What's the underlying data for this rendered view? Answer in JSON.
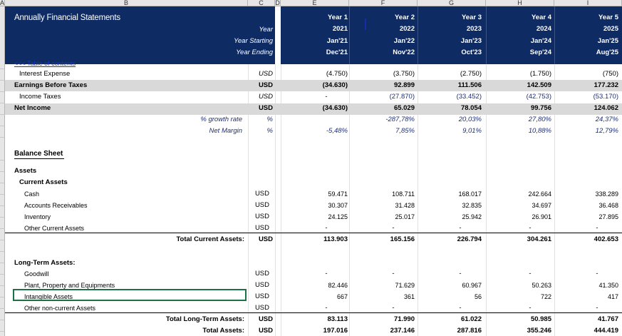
{
  "columns": [
    "A",
    "B",
    "C",
    "D",
    "E",
    "F",
    "G",
    "H",
    "I"
  ],
  "title": "Annually Financial Statements",
  "header_labels": {
    "year": "Year",
    "start": "Year Starting",
    "end": "Year Ending"
  },
  "years": [
    {
      "label": "Year 1",
      "yr": "2021",
      "start": "Jan'21",
      "end": "Dec'21"
    },
    {
      "label": "Year 2",
      "yr": "2022",
      "start": "Jan'22",
      "end": "Nov'22"
    },
    {
      "label": "Year 3",
      "yr": "2023",
      "start": "Jan'23",
      "end": "Oct'23"
    },
    {
      "label": "Year 4",
      "yr": "2024",
      "start": "Jan'24",
      "end": "Sep'24"
    },
    {
      "label": "Year 5",
      "yr": "2025",
      "start": "Jan'25",
      "end": "Aug'25"
    }
  ],
  "toc_link": "<<< Table of contents",
  "rows": [
    {
      "label": "Interest Expense",
      "unit": "USD",
      "vals": [
        "(4.750)",
        "(3.750)",
        "(2.750)",
        "(1.750)",
        "(750)"
      ],
      "style": "sub"
    },
    {
      "label": "Earnings Before Taxes",
      "unit": "USD",
      "vals": [
        "(34.630)",
        "92.899",
        "111.506",
        "142.509",
        "177.232"
      ],
      "style": "total"
    },
    {
      "label": "Income Taxes",
      "unit": "USD",
      "vals": [
        "-",
        "(27.870)",
        "(33.452)",
        "(42.753)",
        "(53.170)"
      ],
      "style": "sub"
    },
    {
      "label": "Net Income",
      "unit": "USD",
      "vals": [
        "(34.630)",
        "65.029",
        "78.054",
        "99.756",
        "124.062"
      ],
      "style": "total"
    },
    {
      "label": "% growth rate",
      "unit": "%",
      "vals": [
        "",
        "-287,78%",
        "20,03%",
        "27,80%",
        "24,37%"
      ],
      "style": "pct"
    },
    {
      "label": "Net Margin",
      "unit": "%",
      "vals": [
        "-5,48%",
        "7,85%",
        "9,01%",
        "10,88%",
        "12,79%"
      ],
      "style": "pct"
    }
  ],
  "balance_sheet": {
    "title": "Balance Sheet",
    "assets": "Assets",
    "current_assets": "Current Assets",
    "current_rows": [
      {
        "label": "Cash",
        "unit": "USD",
        "vals": [
          "59.471",
          "108.711",
          "168.017",
          "242.664",
          "338.289"
        ]
      },
      {
        "label": "Accounts Receivables",
        "unit": "USD",
        "vals": [
          "30.307",
          "31.428",
          "32.835",
          "34.697",
          "36.468"
        ]
      },
      {
        "label": "Inventory",
        "unit": "USD",
        "vals": [
          "24.125",
          "25.017",
          "25.942",
          "26.901",
          "27.895"
        ]
      },
      {
        "label": "Other Current Assets",
        "unit": "USD",
        "vals": [
          "-",
          "-",
          "-",
          "-",
          "-"
        ]
      }
    ],
    "total_current": {
      "label": "Total Current Assets:",
      "unit": "USD",
      "vals": [
        "113.903",
        "165.156",
        "226.794",
        "304.261",
        "402.653"
      ]
    },
    "long_term_assets": "Long-Term Assets:",
    "long_rows": [
      {
        "label": "Goodwill",
        "unit": "USD",
        "vals": [
          "-",
          "-",
          "-",
          "-",
          "-"
        ]
      },
      {
        "label": "Plant, Property and Equipments",
        "unit": "USD",
        "vals": [
          "82.446",
          "71.629",
          "60.967",
          "50.263",
          "41.350"
        ]
      },
      {
        "label": "Intangible Assets",
        "unit": "USD",
        "vals": [
          "667",
          "361",
          "56",
          "722",
          "417"
        ]
      },
      {
        "label": "Other non-current Assets",
        "unit": "USD",
        "vals": [
          "-",
          "-",
          "-",
          "-",
          "-"
        ]
      }
    ],
    "total_long": {
      "label": "Total Long-Term Assets:",
      "unit": "USD",
      "vals": [
        "83.113",
        "71.990",
        "61.022",
        "50.985",
        "41.767"
      ]
    },
    "total_assets": {
      "label": "Total Assets:",
      "unit": "USD",
      "vals": [
        "197.016",
        "237.146",
        "287.816",
        "355.246",
        "444.419"
      ]
    }
  }
}
